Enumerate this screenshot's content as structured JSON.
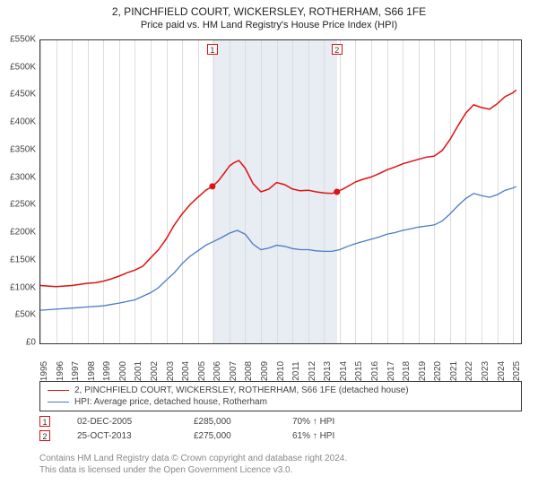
{
  "title_line1": "2, PINCHFIELD COURT, WICKERSLEY, ROTHERHAM, S66 1FE",
  "title_line2": "Price paid vs. HM Land Registry's House Price Index (HPI)",
  "chart": {
    "type": "line",
    "background_color": "#ffffff",
    "grid_color": "#dcdcdc",
    "band_color": "#e8ecf3",
    "band_range_years": [
      2005.92,
      2013.82
    ],
    "ylim": [
      0,
      550000
    ],
    "ytick_step": 50000,
    "ylabels": [
      "£0",
      "£50K",
      "£100K",
      "£150K",
      "£200K",
      "£250K",
      "£300K",
      "£350K",
      "£400K",
      "£450K",
      "£500K",
      "£550K"
    ],
    "xlim": [
      1995,
      2025.5
    ],
    "xticks": [
      1995,
      1996,
      1997,
      1998,
      1999,
      2000,
      2001,
      2002,
      2003,
      2004,
      2005,
      2006,
      2007,
      2008,
      2009,
      2010,
      2011,
      2012,
      2013,
      2014,
      2015,
      2016,
      2017,
      2018,
      2019,
      2020,
      2021,
      2022,
      2023,
      2024,
      2025
    ],
    "series": [
      {
        "name": "property",
        "label": "2, PINCHFIELD COURT, WICKERSLEY, ROTHERHAM, S66 1FE (detached house)",
        "color": "#e01010",
        "line_width": 1.5,
        "data": [
          [
            1995,
            105000
          ],
          [
            1995.5,
            104000
          ],
          [
            1996,
            103000
          ],
          [
            1996.5,
            104000
          ],
          [
            1997,
            105000
          ],
          [
            1997.5,
            107000
          ],
          [
            1998,
            109000
          ],
          [
            1998.5,
            110000
          ],
          [
            1999,
            113000
          ],
          [
            1999.5,
            117000
          ],
          [
            2000,
            122000
          ],
          [
            2000.5,
            128000
          ],
          [
            2001,
            133000
          ],
          [
            2001.5,
            140000
          ],
          [
            2002,
            155000
          ],
          [
            2002.5,
            170000
          ],
          [
            2003,
            190000
          ],
          [
            2003.5,
            215000
          ],
          [
            2004,
            235000
          ],
          [
            2004.5,
            252000
          ],
          [
            2005,
            265000
          ],
          [
            2005.5,
            278000
          ],
          [
            2005.92,
            285000
          ],
          [
            2006.3,
            295000
          ],
          [
            2006.7,
            310000
          ],
          [
            2007,
            322000
          ],
          [
            2007.3,
            328000
          ],
          [
            2007.6,
            332000
          ],
          [
            2008,
            318000
          ],
          [
            2008.5,
            290000
          ],
          [
            2009,
            275000
          ],
          [
            2009.5,
            280000
          ],
          [
            2010,
            292000
          ],
          [
            2010.5,
            288000
          ],
          [
            2011,
            280000
          ],
          [
            2011.5,
            277000
          ],
          [
            2012,
            278000
          ],
          [
            2012.5,
            275000
          ],
          [
            2013,
            273000
          ],
          [
            2013.5,
            272000
          ],
          [
            2013.82,
            275000
          ],
          [
            2014.2,
            280000
          ],
          [
            2014.7,
            288000
          ],
          [
            2015,
            293000
          ],
          [
            2015.5,
            298000
          ],
          [
            2016,
            302000
          ],
          [
            2016.5,
            308000
          ],
          [
            2017,
            315000
          ],
          [
            2017.5,
            320000
          ],
          [
            2018,
            326000
          ],
          [
            2018.5,
            330000
          ],
          [
            2019,
            334000
          ],
          [
            2019.5,
            338000
          ],
          [
            2020,
            340000
          ],
          [
            2020.5,
            350000
          ],
          [
            2021,
            370000
          ],
          [
            2021.5,
            395000
          ],
          [
            2022,
            418000
          ],
          [
            2022.5,
            433000
          ],
          [
            2023,
            428000
          ],
          [
            2023.5,
            425000
          ],
          [
            2024,
            435000
          ],
          [
            2024.5,
            448000
          ],
          [
            2025,
            455000
          ],
          [
            2025.2,
            460000
          ]
        ],
        "sale_dots": [
          {
            "x": 2005.92,
            "y": 285000
          },
          {
            "x": 2013.82,
            "y": 275000
          }
        ]
      },
      {
        "name": "hpi",
        "label": "HPI: Average price, detached house, Rotherham",
        "color": "#4a7ac7",
        "line_width": 1.3,
        "data": [
          [
            1995,
            60000
          ],
          [
            1996,
            62000
          ],
          [
            1997,
            64000
          ],
          [
            1998,
            66000
          ],
          [
            1999,
            68000
          ],
          [
            2000,
            73000
          ],
          [
            2001,
            79000
          ],
          [
            2002,
            92000
          ],
          [
            2002.5,
            101000
          ],
          [
            2003,
            115000
          ],
          [
            2003.5,
            128000
          ],
          [
            2004,
            145000
          ],
          [
            2004.5,
            158000
          ],
          [
            2005,
            168000
          ],
          [
            2005.5,
            178000
          ],
          [
            2006,
            185000
          ],
          [
            2006.5,
            192000
          ],
          [
            2007,
            200000
          ],
          [
            2007.5,
            205000
          ],
          [
            2008,
            198000
          ],
          [
            2008.5,
            180000
          ],
          [
            2009,
            170000
          ],
          [
            2009.5,
            173000
          ],
          [
            2010,
            178000
          ],
          [
            2010.5,
            176000
          ],
          [
            2011,
            172000
          ],
          [
            2011.5,
            170000
          ],
          [
            2012,
            170000
          ],
          [
            2012.5,
            168000
          ],
          [
            2013,
            167000
          ],
          [
            2013.5,
            167000
          ],
          [
            2014,
            170000
          ],
          [
            2014.5,
            176000
          ],
          [
            2015,
            181000
          ],
          [
            2015.5,
            185000
          ],
          [
            2016,
            189000
          ],
          [
            2016.5,
            193000
          ],
          [
            2017,
            198000
          ],
          [
            2017.5,
            201000
          ],
          [
            2018,
            205000
          ],
          [
            2018.5,
            208000
          ],
          [
            2019,
            211000
          ],
          [
            2019.5,
            213000
          ],
          [
            2020,
            215000
          ],
          [
            2020.5,
            222000
          ],
          [
            2021,
            235000
          ],
          [
            2021.5,
            250000
          ],
          [
            2022,
            263000
          ],
          [
            2022.5,
            272000
          ],
          [
            2023,
            268000
          ],
          [
            2023.5,
            265000
          ],
          [
            2024,
            270000
          ],
          [
            2024.5,
            278000
          ],
          [
            2025,
            282000
          ],
          [
            2025.2,
            285000
          ]
        ]
      }
    ],
    "markers": [
      {
        "n": "1",
        "year": 2005.92
      },
      {
        "n": "2",
        "year": 2013.82
      }
    ]
  },
  "legend": [
    {
      "color": "#e01010",
      "label": "2, PINCHFIELD COURT, WICKERSLEY, ROTHERHAM, S66 1FE (detached house)"
    },
    {
      "color": "#4a7ac7",
      "label": "HPI: Average price, detached house, Rotherham"
    }
  ],
  "sales": [
    {
      "n": "1",
      "date": "02-DEC-2005",
      "price": "£285,000",
      "pct": "70% ↑ HPI"
    },
    {
      "n": "2",
      "date": "25-OCT-2013",
      "price": "£275,000",
      "pct": "61% ↑ HPI"
    }
  ],
  "footer_line1": "Contains HM Land Registry data © Crown copyright and database right 2024.",
  "footer_line2": "This data is licensed under the Open Government Licence v3.0."
}
